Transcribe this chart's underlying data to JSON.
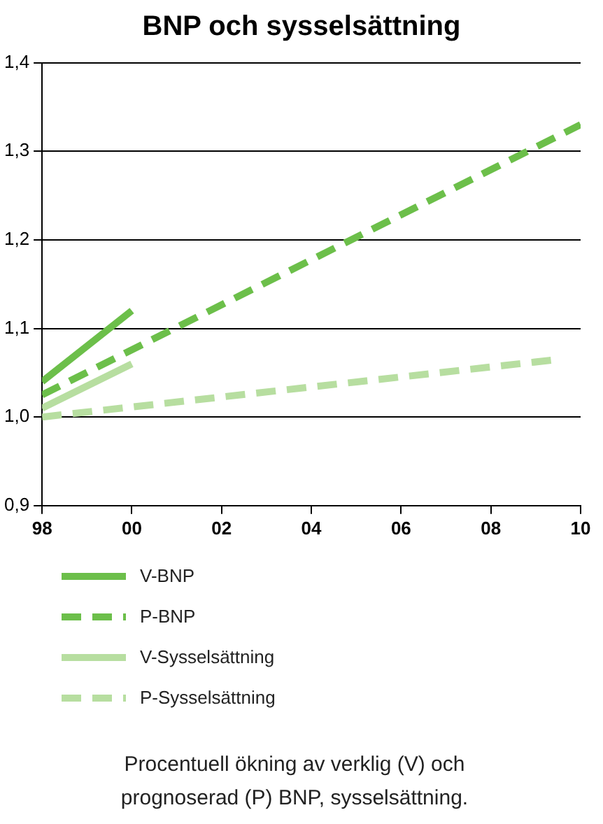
{
  "chart_data": {
    "type": "line",
    "title": "BNP och sysselsättning",
    "series": [
      {
        "name": "V-BNP",
        "color": "#6cbf4a",
        "line_style": "solid",
        "x": [
          1998,
          2000
        ],
        "values": [
          1.04,
          1.12
        ]
      },
      {
        "name": "P-BNP",
        "color": "#6cbf4a",
        "line_style": "dashed",
        "x": [
          1998,
          2010
        ],
        "values": [
          1.025,
          1.33
        ]
      },
      {
        "name": "V-Sysselsättning",
        "color": "#b7dea0",
        "line_style": "solid",
        "x": [
          1998,
          2000
        ],
        "values": [
          1.01,
          1.06
        ]
      },
      {
        "name": "P-Sysselsättning",
        "color": "#b7dea0",
        "line_style": "dashed",
        "x": [
          1998,
          2009.5
        ],
        "values": [
          1.0,
          1.065
        ]
      }
    ],
    "xlim": [
      1998,
      2010
    ],
    "xticks": [
      {
        "value": 1998,
        "label": "98"
      },
      {
        "value": 2000,
        "label": "00"
      },
      {
        "value": 2002,
        "label": "02"
      },
      {
        "value": 2004,
        "label": "04"
      },
      {
        "value": 2006,
        "label": "06"
      },
      {
        "value": 2008,
        "label": "08"
      },
      {
        "value": 2010,
        "label": "10"
      }
    ],
    "ylim": [
      0.9,
      1.4
    ],
    "yticks": [
      {
        "value": 0.9,
        "label": "0,9"
      },
      {
        "value": 1.0,
        "label": "1,0"
      },
      {
        "value": 1.1,
        "label": "1,1"
      },
      {
        "value": 1.2,
        "label": "1,2"
      },
      {
        "value": 1.3,
        "label": "1,3"
      },
      {
        "value": 1.4,
        "label": "1,4"
      }
    ],
    "grid": "y",
    "legend": "bottom",
    "annotations": [
      "Procentuell ökning av verklig (V) och prognoserad (P) BNP, sysselsättning."
    ]
  }
}
